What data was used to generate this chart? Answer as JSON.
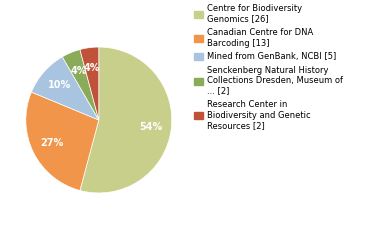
{
  "labels": [
    "Centre for Biodiversity\nGenomics [26]",
    "Canadian Centre for DNA\nBarcoding [13]",
    "Mined from GenBank, NCBI [5]",
    "Senckenberg Natural History\nCollections Dresden, Museum of\n... [2]",
    "Research Center in\nBiodiversity and Genetic\nResources [2]"
  ],
  "values": [
    26,
    13,
    5,
    2,
    2
  ],
  "colors": [
    "#c8cf8a",
    "#f0954a",
    "#a8c4e0",
    "#8aab5a",
    "#c0523a"
  ],
  "startangle": 90,
  "background_color": "#ffffff",
  "pct_color": "white",
  "pct_fontsize": 7.0,
  "legend_fontsize": 6.0
}
